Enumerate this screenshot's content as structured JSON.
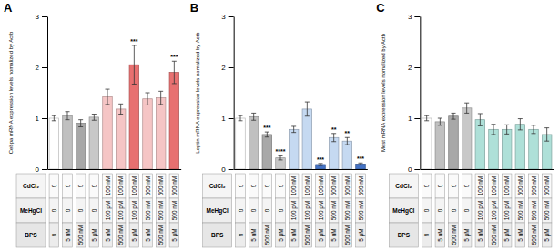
{
  "chart_data": [
    {
      "type": "bar",
      "title": "A",
      "ylabel": "Cebpa mRNA expression levels nomalized by Actb",
      "categories": [
        null,
        null,
        null,
        null,
        null,
        null,
        null,
        null,
        null,
        null
      ],
      "values": [
        1.0,
        1.05,
        0.9,
        1.02,
        1.42,
        1.18,
        2.05,
        1.38,
        1.4,
        1.9
      ],
      "errors": [
        0.05,
        0.08,
        0.07,
        0.06,
        0.15,
        0.1,
        0.38,
        0.12,
        0.13,
        0.22
      ],
      "significance": [
        null,
        null,
        null,
        null,
        null,
        null,
        "***",
        null,
        null,
        "***"
      ],
      "colors": [
        "#ffffff",
        "#c0c0c0",
        "#a8a8a8",
        "#c8c8c8",
        "#f5c5c5",
        "#f5c5c5",
        "#e87070",
        "#f5c5c5",
        "#f5c5c5",
        "#e87070"
      ],
      "ylim": [
        0,
        3
      ],
      "yticks": [
        0,
        1,
        2,
        3
      ],
      "tick_labels": "y",
      "table_rows": [
        [
          "CdCl₂",
          "0",
          "0",
          "0",
          "0",
          "100 nM",
          "100 nM",
          "100 nM",
          "500 nM",
          "500 nM",
          "500 nM"
        ],
        [
          "MeHgCl",
          "0",
          "0",
          "0",
          "0",
          "100 pM",
          "100 pM",
          "100 pM",
          "500 nM",
          "500 nM",
          "500 nM"
        ],
        [
          "BPS",
          "0",
          "5 nM",
          "500 nM",
          "5 μM",
          "5 nM",
          "500 nM",
          "5 μM",
          "5 nM",
          "500 nM",
          "5 μM"
        ]
      ]
    },
    {
      "type": "bar",
      "title": "B",
      "ylabel": "Leptin mRNA expression levels nomalized by Actb",
      "categories": [
        null,
        null,
        null,
        null,
        null,
        null,
        null,
        null,
        null,
        null
      ],
      "values": [
        1.0,
        1.03,
        0.68,
        0.22,
        0.78,
        1.18,
        0.09,
        0.62,
        0.55,
        0.1
      ],
      "errors": [
        0.05,
        0.07,
        0.05,
        0.04,
        0.06,
        0.14,
        0.02,
        0.08,
        0.07,
        0.02
      ],
      "significance": [
        null,
        null,
        "***",
        "****",
        null,
        null,
        "***",
        "**",
        "**",
        "***"
      ],
      "colors": [
        "#ffffff",
        "#c0c0c0",
        "#a8a8a8",
        "#c8c8c8",
        "#c5d9f1",
        "#c5d9f1",
        "#4472c4",
        "#c5d9f1",
        "#c5d9f1",
        "#4472c4"
      ],
      "ylim": [
        0,
        3
      ],
      "yticks": [
        0,
        1,
        2,
        3
      ],
      "tick_labels": "y",
      "table_rows": [
        [
          "CdCl₂",
          "0",
          "0",
          "0",
          "0",
          "100 nM",
          "100 nM",
          "100 nM",
          "500 nM",
          "500 nM",
          "500 nM"
        ],
        [
          "MeHgCl",
          "0",
          "0",
          "0",
          "0",
          "100 pM",
          "100 pM",
          "100 pM",
          "500 nM",
          "500 nM",
          "500 nM"
        ],
        [
          "BPS",
          "0",
          "5 nM",
          "500 nM",
          "5 μM",
          "5 nM",
          "500 nM",
          "5 μM",
          "5 nM",
          "500 nM",
          "5 μM"
        ]
      ]
    },
    {
      "type": "bar",
      "title": "C",
      "ylabel": "Mest mRNA expression levels nomalized by Actb",
      "categories": [
        null,
        null,
        null,
        null,
        null,
        null,
        null,
        null,
        null,
        null
      ],
      "values": [
        1.0,
        0.93,
        1.04,
        1.2,
        0.97,
        0.78,
        0.78,
        0.88,
        0.78,
        0.68
      ],
      "errors": [
        0.05,
        0.07,
        0.06,
        0.1,
        0.12,
        0.1,
        0.09,
        0.11,
        0.08,
        0.13
      ],
      "colors": [
        "#ffffff",
        "#c0c0c0",
        "#a8a8a8",
        "#c8c8c8",
        "#aee0d8",
        "#aee0d8",
        "#aee0d8",
        "#aee0d8",
        "#aee0d8",
        "#aee0d8"
      ],
      "ylim": [
        0,
        3
      ],
      "yticks": [
        0,
        1,
        2,
        3
      ],
      "tick_labels": "y",
      "table_rows": [
        [
          "CdCl₂",
          "0",
          "0",
          "0",
          "0",
          "100 nM",
          "100 nM",
          "100 nM",
          "500 nM",
          "500 nM",
          "500 nM"
        ],
        [
          "MeHgCl",
          "0",
          "0",
          "0",
          "0",
          "100 pM",
          "100 pM",
          "100 pM",
          "500 nM",
          "500 nM",
          "500 nM"
        ],
        [
          "BPS",
          "0",
          "5 nM",
          "500 nM",
          "5 μM",
          "5 nM",
          "500 nM",
          "5 μM",
          "5 nM",
          "500 nM",
          "5 μM"
        ]
      ]
    }
  ]
}
